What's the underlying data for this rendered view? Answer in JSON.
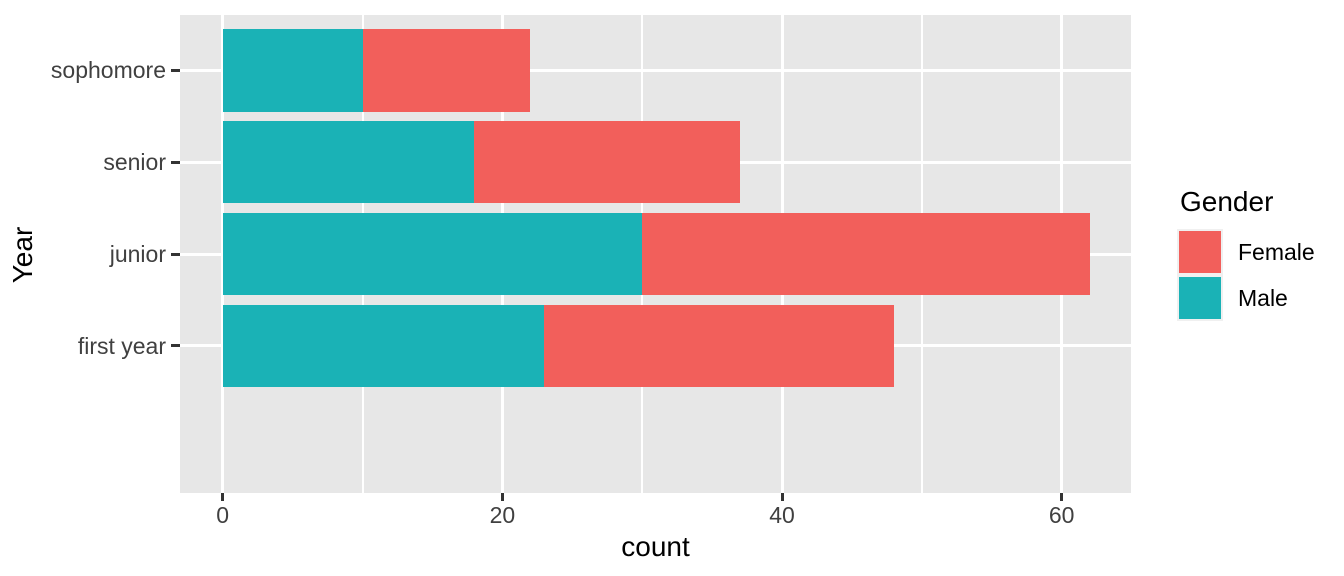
{
  "chart_data": {
    "type": "bar",
    "orientation": "horizontal",
    "stacked": true,
    "title": "",
    "xlabel": "count",
    "ylabel": "Year",
    "categories_top_to_bottom": [
      "sophomore",
      "senior",
      "junior",
      "first year"
    ],
    "series": [
      {
        "name": "Male",
        "color": "#1AB2B6",
        "values": [
          10,
          18,
          30,
          23
        ]
      },
      {
        "name": "Female",
        "color": "#F25F5B",
        "values": [
          12,
          19,
          32,
          25
        ]
      }
    ],
    "totals": [
      22,
      37,
      62,
      48
    ],
    "x_ticks": [
      0,
      20,
      40,
      60
    ],
    "x_minor_gridlines": [
      10,
      30,
      50
    ],
    "xlim_data": [
      0,
      62
    ],
    "grid": "white-on-gray-panel",
    "legend": {
      "title": "Gender",
      "position": "right",
      "entries": [
        "Female",
        "Male"
      ]
    },
    "panel_background": "#E7E7E7"
  }
}
